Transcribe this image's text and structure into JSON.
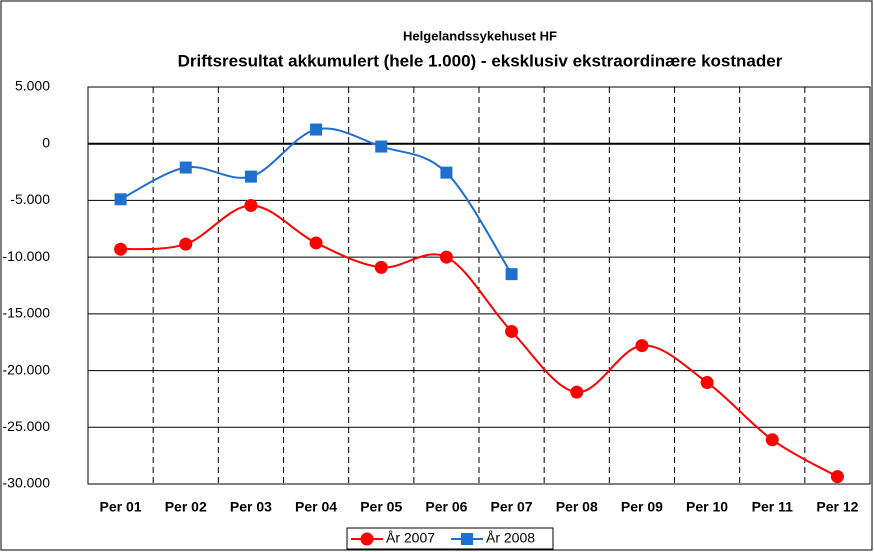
{
  "chart_data": {
    "type": "line",
    "title": "Driftsresultat akkumulert (hele 1.000) - eksklusiv ekstraordinære kostnader",
    "subtitle": "Helgelandssykehuset HF",
    "categories": [
      "Per 01",
      "Per 02",
      "Per 03",
      "Per 04",
      "Per 05",
      "Per 06",
      "Per 07",
      "Per 08",
      "Per 09",
      "Per 10",
      "Per 11",
      "Per 12"
    ],
    "series": [
      {
        "name": "År 2007",
        "color": "#ff0000",
        "marker": "circle",
        "values": [
          -9300,
          -8850,
          -5450,
          -8750,
          -10900,
          -10000,
          -16550,
          -21900,
          -17800,
          -21050,
          -26100,
          -29350
        ]
      },
      {
        "name": "År 2008",
        "color": "#1f6fcf",
        "marker": "square",
        "values": [
          -4900,
          -2100,
          -2900,
          1250,
          -250,
          -2550,
          -11500,
          null,
          null,
          null,
          null,
          null
        ]
      }
    ],
    "ylim": [
      -30000,
      5000
    ],
    "yticks": [
      {
        "value": -30000,
        "label": "-30.000"
      },
      {
        "value": -25000,
        "label": "-25.000"
      },
      {
        "value": -20000,
        "label": "-20.000"
      },
      {
        "value": -15000,
        "label": "-15.000"
      },
      {
        "value": -10000,
        "label": "-10.000"
      },
      {
        "value": -5000,
        "label": "-5.000"
      },
      0,
      {
        "value": 5000,
        "label": "5.000"
      }
    ],
    "grid": true,
    "legend": "bottom"
  }
}
